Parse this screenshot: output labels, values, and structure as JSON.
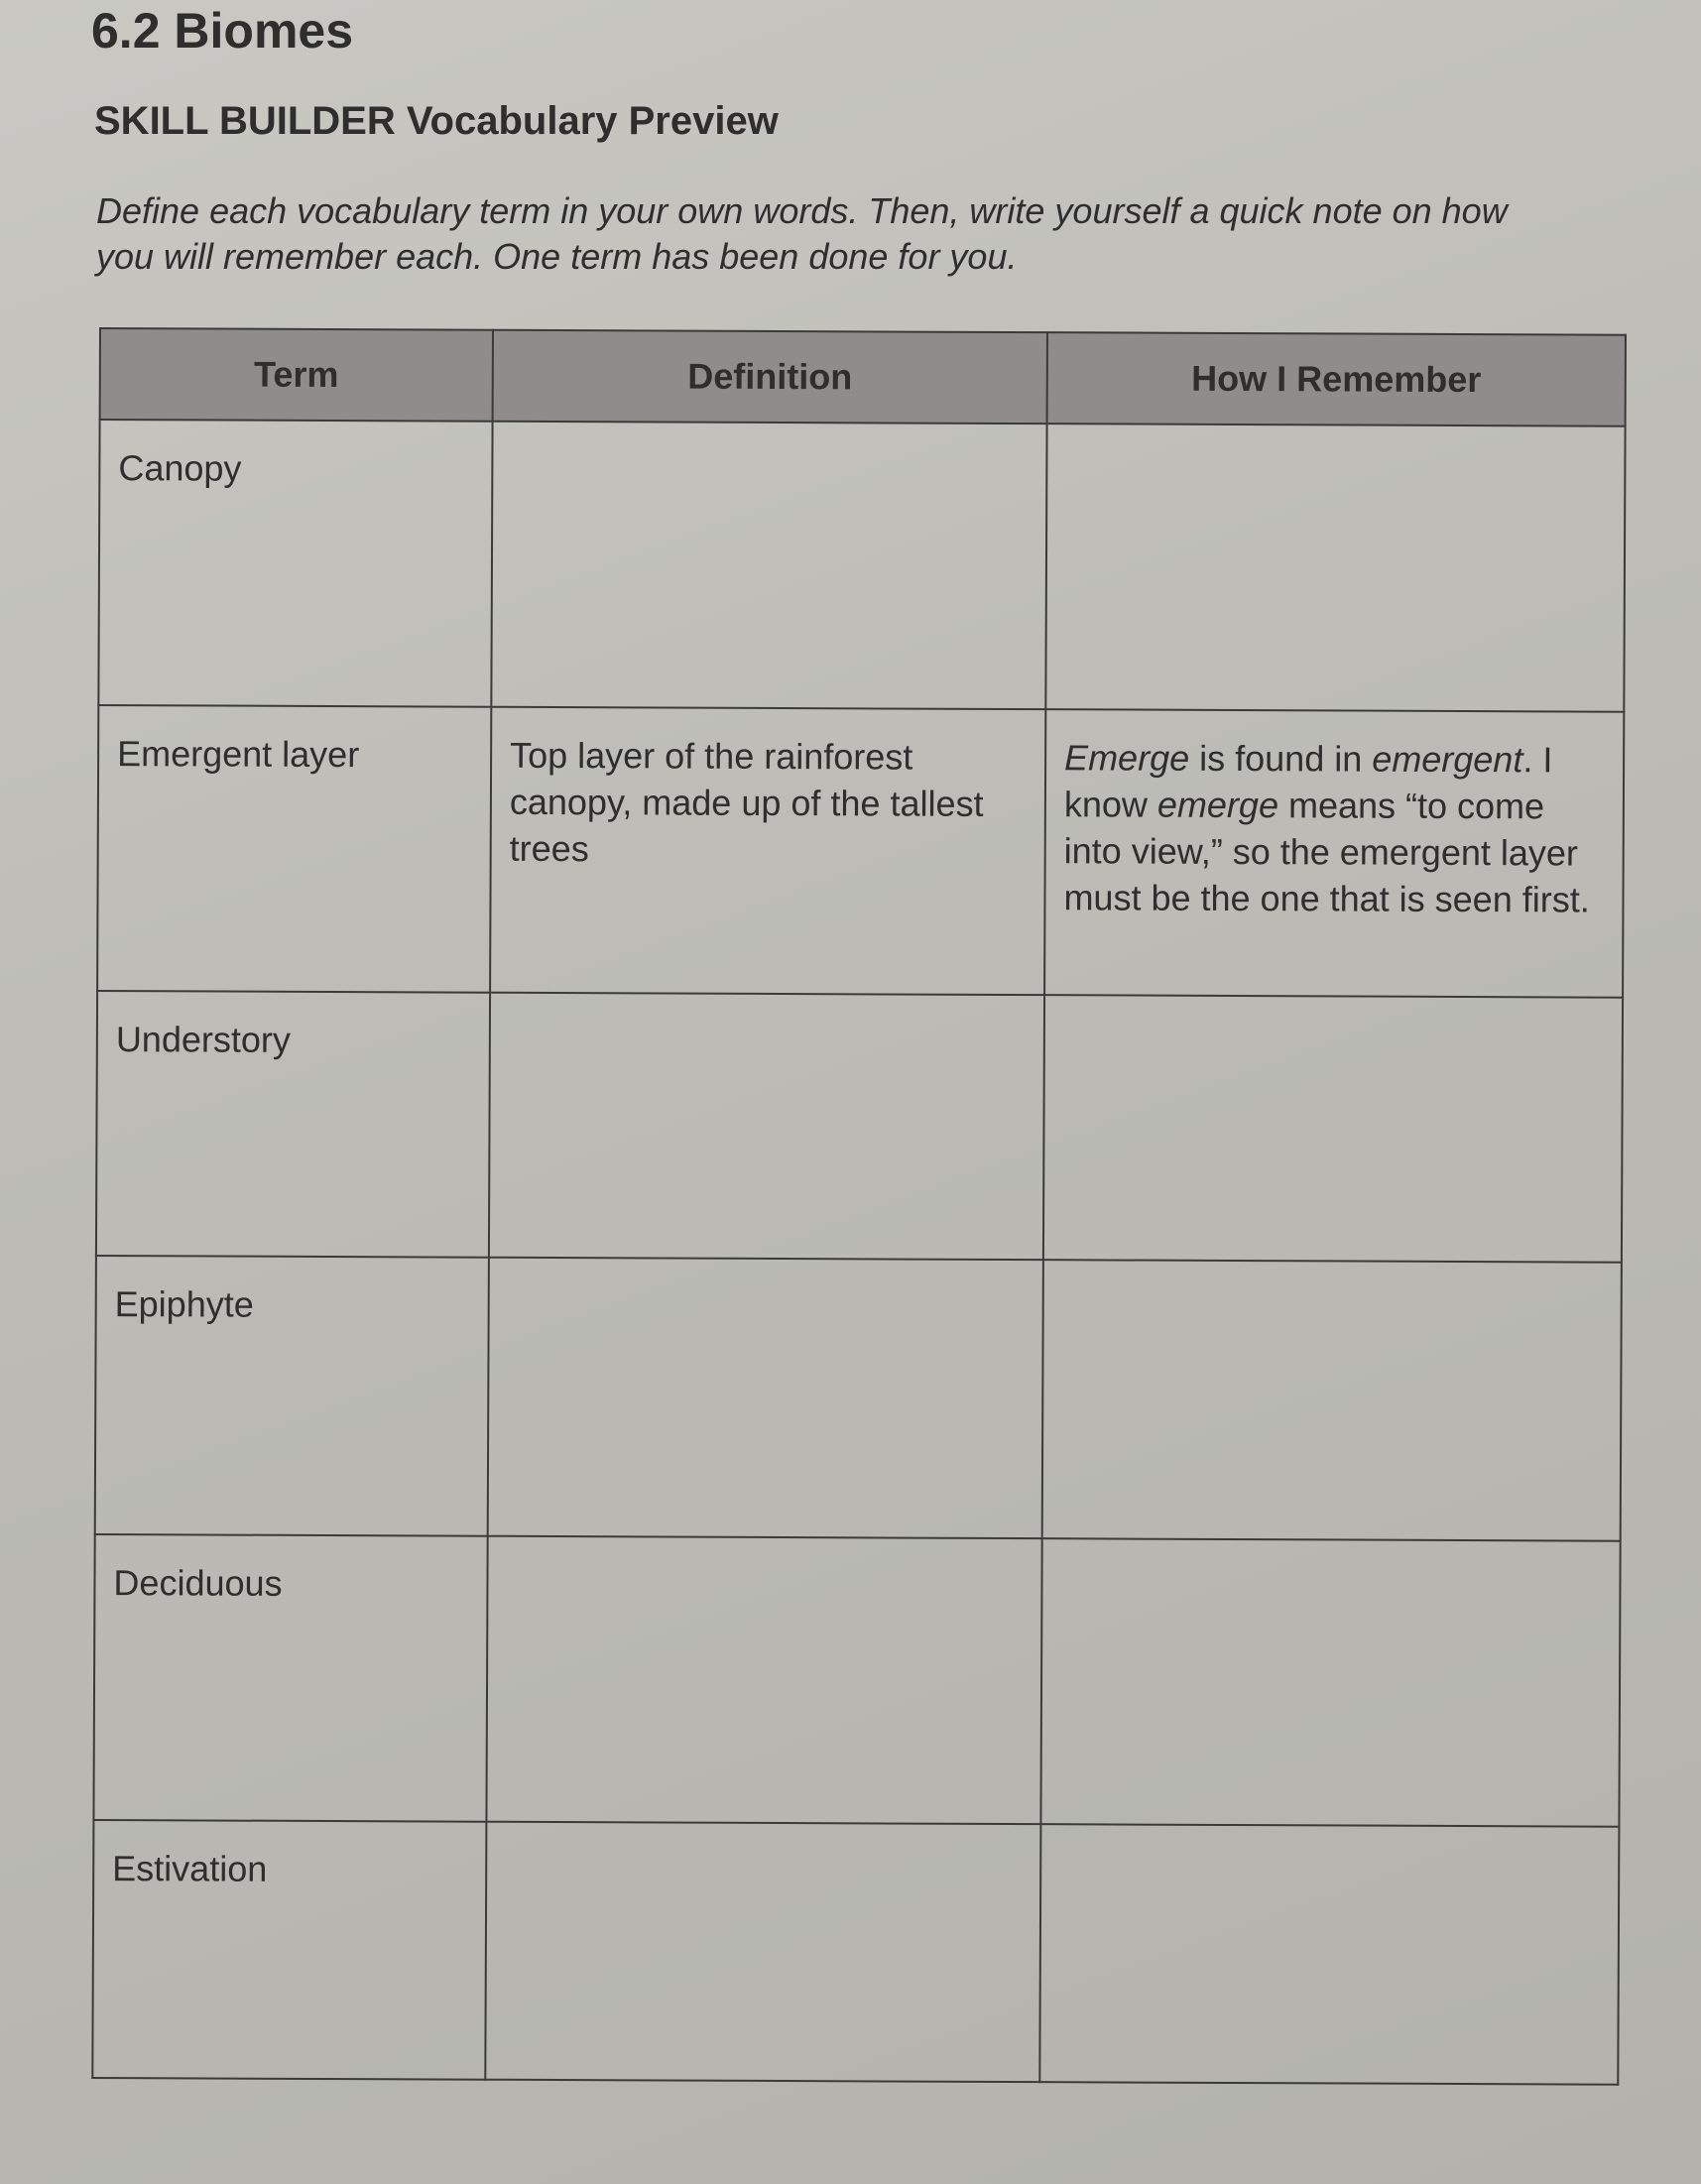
{
  "header": {
    "title": "6.2 Biomes",
    "subtitle": "SKILL BUILDER  Vocabulary Preview",
    "instructions": "Define each vocabulary term in your own words. Then, write yourself a quick note on how you will remember each. One term has been done for you."
  },
  "table": {
    "columns": [
      "Term",
      "Definition",
      "How I Remember"
    ],
    "rows": [
      {
        "term": "Canopy",
        "definition": "",
        "remember": ""
      },
      {
        "term": "Emergent layer",
        "definition": "Top layer of the rainforest canopy, made up of the tallest trees",
        "remember_parts": [
          "Emerge",
          " is found in ",
          "emergent",
          ". I know ",
          "emerge",
          " means “to come into view,” so the emergent layer must be the one that is seen first."
        ]
      },
      {
        "term": "Understory",
        "definition": "",
        "remember": ""
      },
      {
        "term": "Epiphyte",
        "definition": "",
        "remember": ""
      },
      {
        "term": "Deciduous",
        "definition": "",
        "remember": ""
      },
      {
        "term": "Estivation",
        "definition": "",
        "remember": ""
      }
    ]
  }
}
